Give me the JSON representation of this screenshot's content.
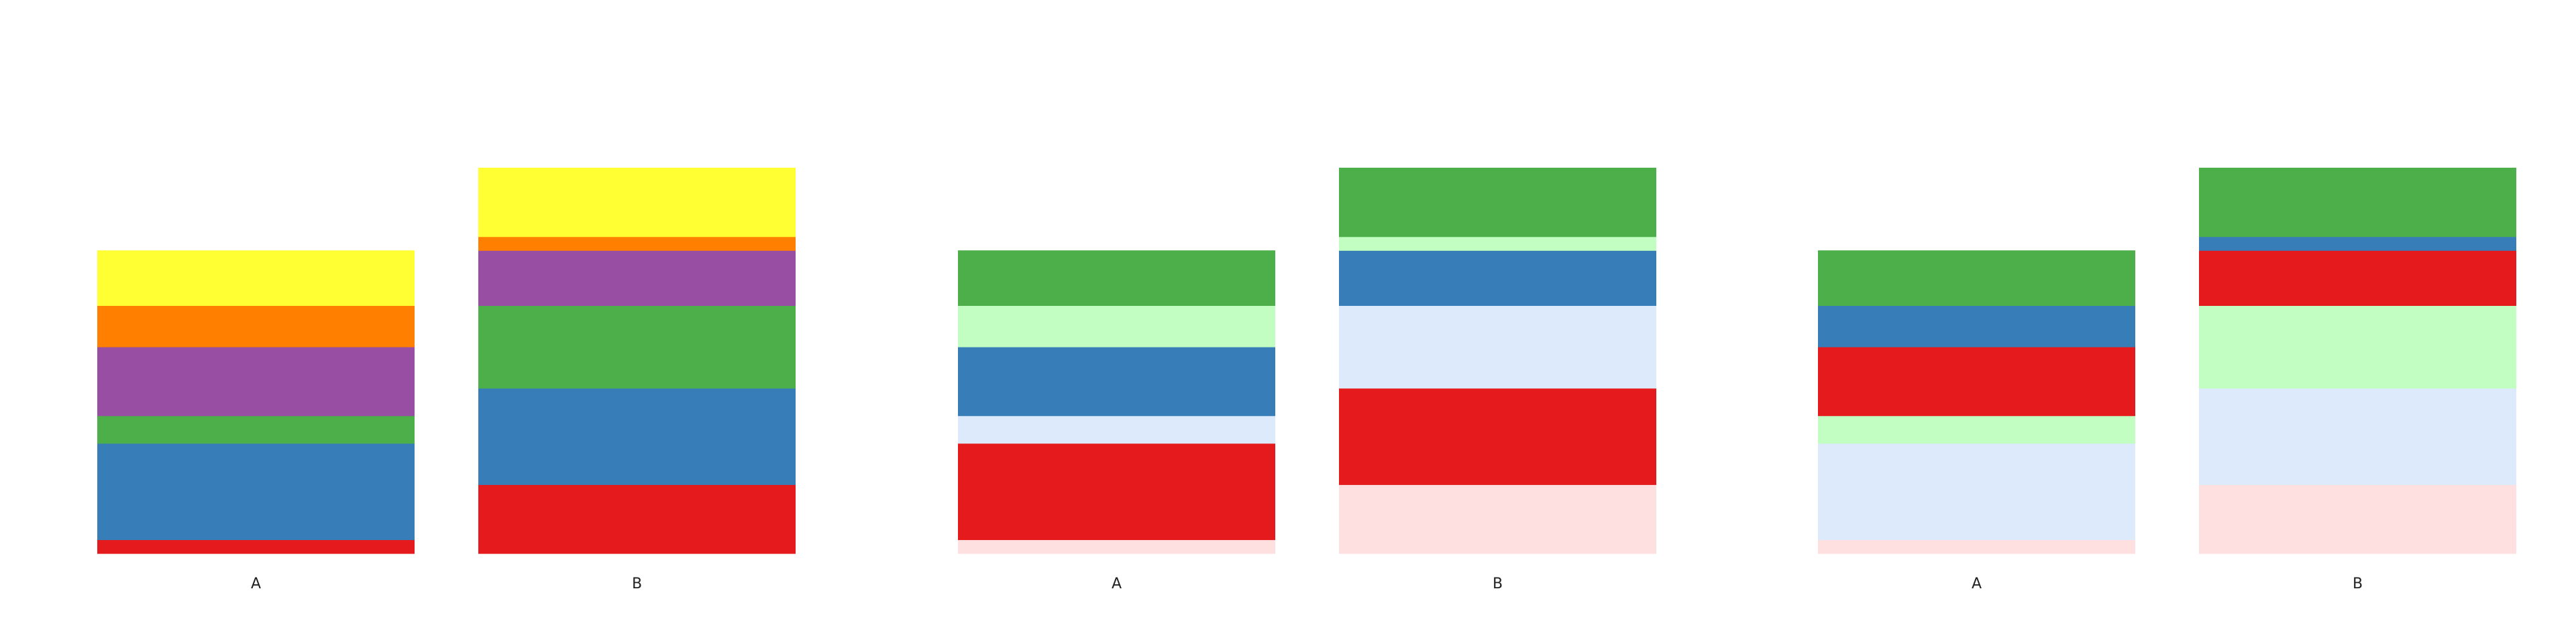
{
  "chart_data": [
    {
      "type": "bar",
      "stacked": true,
      "categories": [
        "A",
        "B"
      ],
      "ylim": [
        0,
        14
      ],
      "grid": false,
      "series": [
        {
          "color": "#e41a1c",
          "values": [
            0.5,
            2.5
          ]
        },
        {
          "color": "#377eb8",
          "values": [
            3.5,
            3.5
          ]
        },
        {
          "color": "#4daf4a",
          "values": [
            1.0,
            3.0
          ]
        },
        {
          "color": "#984ea3",
          "values": [
            2.5,
            2.0
          ]
        },
        {
          "color": "#ff7f00",
          "values": [
            1.5,
            0.5
          ]
        },
        {
          "color": "#ffff33",
          "values": [
            2.0,
            2.5
          ]
        }
      ]
    },
    {
      "type": "bar",
      "stacked": true,
      "categories": [
        "A",
        "B"
      ],
      "ylim": [
        0,
        14
      ],
      "grid": false,
      "series": [
        {
          "color": "#fee0e1",
          "values": [
            0.5,
            2.5
          ]
        },
        {
          "color": "#e41a1c",
          "values": [
            3.5,
            3.5
          ]
        },
        {
          "color": "#dceafc",
          "values": [
            1.0,
            3.0
          ]
        },
        {
          "color": "#377eb8",
          "values": [
            2.5,
            2.0
          ]
        },
        {
          "color": "#c2fec1",
          "values": [
            1.5,
            0.5
          ]
        },
        {
          "color": "#4daf4a",
          "values": [
            2.0,
            2.5
          ]
        }
      ]
    },
    {
      "type": "bar",
      "stacked": true,
      "categories": [
        "A",
        "B"
      ],
      "ylim": [
        0,
        14
      ],
      "grid": false,
      "series": [
        {
          "color": "#fee0e1",
          "values": [
            0.5,
            2.5
          ]
        },
        {
          "color": "#dceafc",
          "values": [
            3.5,
            3.5
          ]
        },
        {
          "color": "#c2fec1",
          "values": [
            1.0,
            3.0
          ]
        },
        {
          "color": "#e41a1c",
          "values": [
            2.5,
            2.0
          ]
        },
        {
          "color": "#377eb8",
          "values": [
            1.5,
            0.5
          ]
        },
        {
          "color": "#4daf4a",
          "values": [
            2.0,
            2.5
          ]
        }
      ]
    }
  ]
}
